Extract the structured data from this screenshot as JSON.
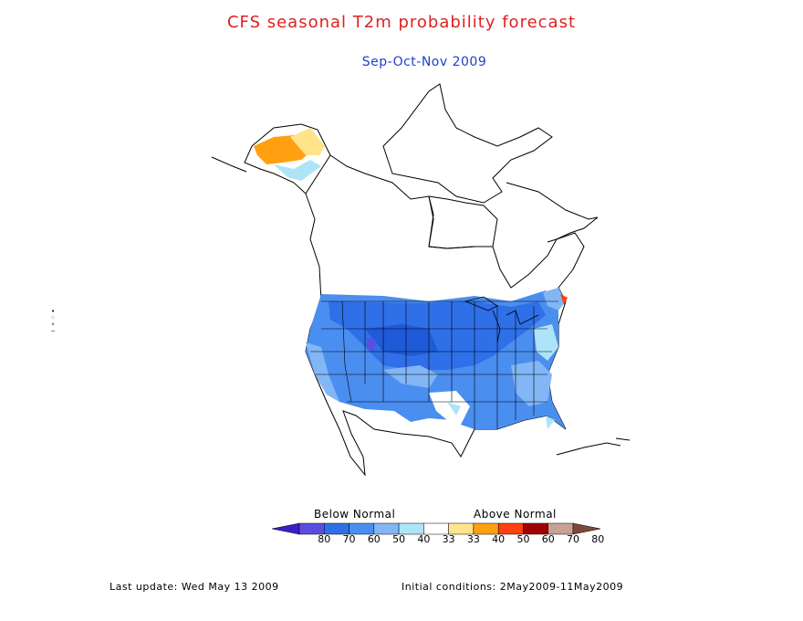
{
  "title": "CFS seasonal T2m probability forecast",
  "subtitle": "Sep-Oct-Nov 2009",
  "legend": {
    "below_label": "Below Normal",
    "above_label": "Above Normal",
    "ticks": [
      "80",
      "70",
      "60",
      "50",
      "40",
      "33",
      "33",
      "40",
      "50",
      "60",
      "70",
      "80"
    ],
    "colors": [
      "#3a1ec8",
      "#5a4ee0",
      "#2f6fe8",
      "#4a8ef0",
      "#82b6f5",
      "#aee4f8",
      "#ffffff",
      "#ffe48a",
      "#ffa010",
      "#ff4010",
      "#a00000",
      "#c8a096",
      "#7a4a3a"
    ]
  },
  "footer": {
    "last_update": "Last update: Wed May 13 2009",
    "initial_conditions": "Initial conditions: 2May2009-11May2009"
  },
  "colors": {
    "title": "#e02020",
    "subtitle": "#2040d0"
  }
}
